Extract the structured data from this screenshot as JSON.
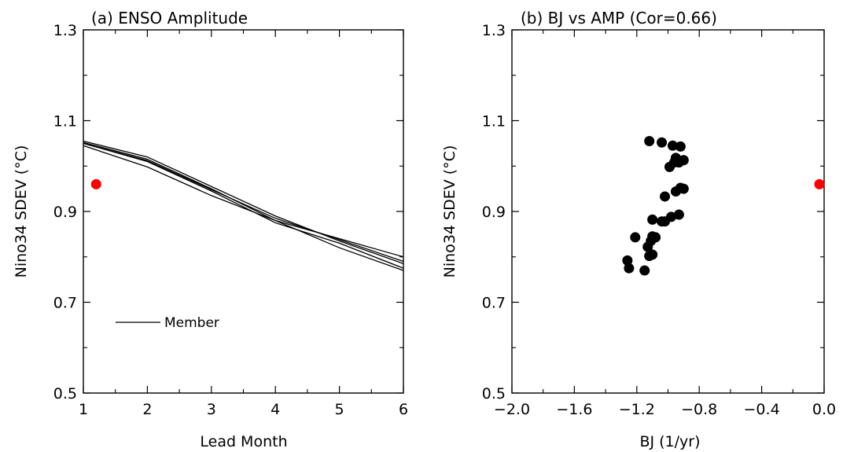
{
  "chart_data": [
    {
      "type": "line",
      "title": "(a) ENSO Amplitude",
      "xlabel": "Lead Month",
      "ylabel": "Nino34 SDEV (°C)",
      "xlim": [
        1,
        6
      ],
      "ylim": [
        0.5,
        1.3
      ],
      "xticks": [
        1,
        2,
        3,
        4,
        5,
        6
      ],
      "yticks": [
        0.5,
        0.7,
        0.9,
        1.1,
        1.3
      ],
      "x": [
        1,
        2,
        3,
        4,
        5,
        6
      ],
      "series": [
        {
          "values": [
            1.055,
            1.02,
            0.955,
            0.89,
            0.835,
            0.785
          ]
        },
        {
          "values": [
            1.052,
            1.015,
            0.95,
            0.88,
            0.84,
            0.8
          ]
        },
        {
          "values": [
            1.05,
            1.01,
            0.945,
            0.875,
            0.83,
            0.775
          ]
        },
        {
          "values": [
            1.045,
            0.998,
            0.935,
            0.88,
            0.82,
            0.77
          ]
        },
        {
          "values": [
            1.05,
            1.012,
            0.948,
            0.885,
            0.838,
            0.79
          ]
        }
      ],
      "legend": {
        "label": "Member",
        "placement": "bottom-left"
      },
      "observation": {
        "x": 1.2,
        "y": 0.96,
        "color": "#ff0000"
      },
      "line_color": "#000000"
    },
    {
      "type": "scatter",
      "title": "(b) BJ vs AMP (Cor=0.66)",
      "xlabel": "BJ (1/yr)",
      "ylabel": "Nino34 SDEV (°C)",
      "xlim": [
        -2.0,
        0.0
      ],
      "ylim": [
        0.5,
        1.3
      ],
      "xticks": [
        "−2.0",
        "−1.6",
        "−1.2",
        "−0.8",
        "−0.4",
        "0.0"
      ],
      "xtick_values": [
        -2.0,
        -1.6,
        -1.2,
        -0.8,
        -0.4,
        0.0
      ],
      "yticks": [
        0.5,
        0.7,
        0.9,
        1.1,
        1.3
      ],
      "points": [
        [
          -1.12,
          1.055
        ],
        [
          -1.04,
          1.052
        ],
        [
          -0.97,
          1.045
        ],
        [
          -0.92,
          1.043
        ],
        [
          -0.95,
          1.018
        ],
        [
          -0.9,
          1.013
        ],
        [
          -0.96,
          1.008
        ],
        [
          -0.93,
          1.008
        ],
        [
          -0.99,
          0.998
        ],
        [
          -0.95,
          0.944
        ],
        [
          -0.92,
          0.952
        ],
        [
          -0.9,
          0.95
        ],
        [
          -1.02,
          0.933
        ],
        [
          -0.98,
          0.888
        ],
        [
          -0.93,
          0.893
        ],
        [
          -1.04,
          0.878
        ],
        [
          -1.02,
          0.878
        ],
        [
          -1.1,
          0.882
        ],
        [
          -1.1,
          0.845
        ],
        [
          -1.08,
          0.843
        ],
        [
          -1.21,
          0.843
        ],
        [
          -1.13,
          0.822
        ],
        [
          -1.11,
          0.835
        ],
        [
          -1.12,
          0.802
        ],
        [
          -1.1,
          0.805
        ],
        [
          -1.26,
          0.792
        ],
        [
          -1.25,
          0.775
        ],
        [
          -1.15,
          0.77
        ]
      ],
      "point_color": "#000000",
      "observation": {
        "x": -0.03,
        "y": 0.96,
        "color": "#ff0000"
      }
    }
  ]
}
